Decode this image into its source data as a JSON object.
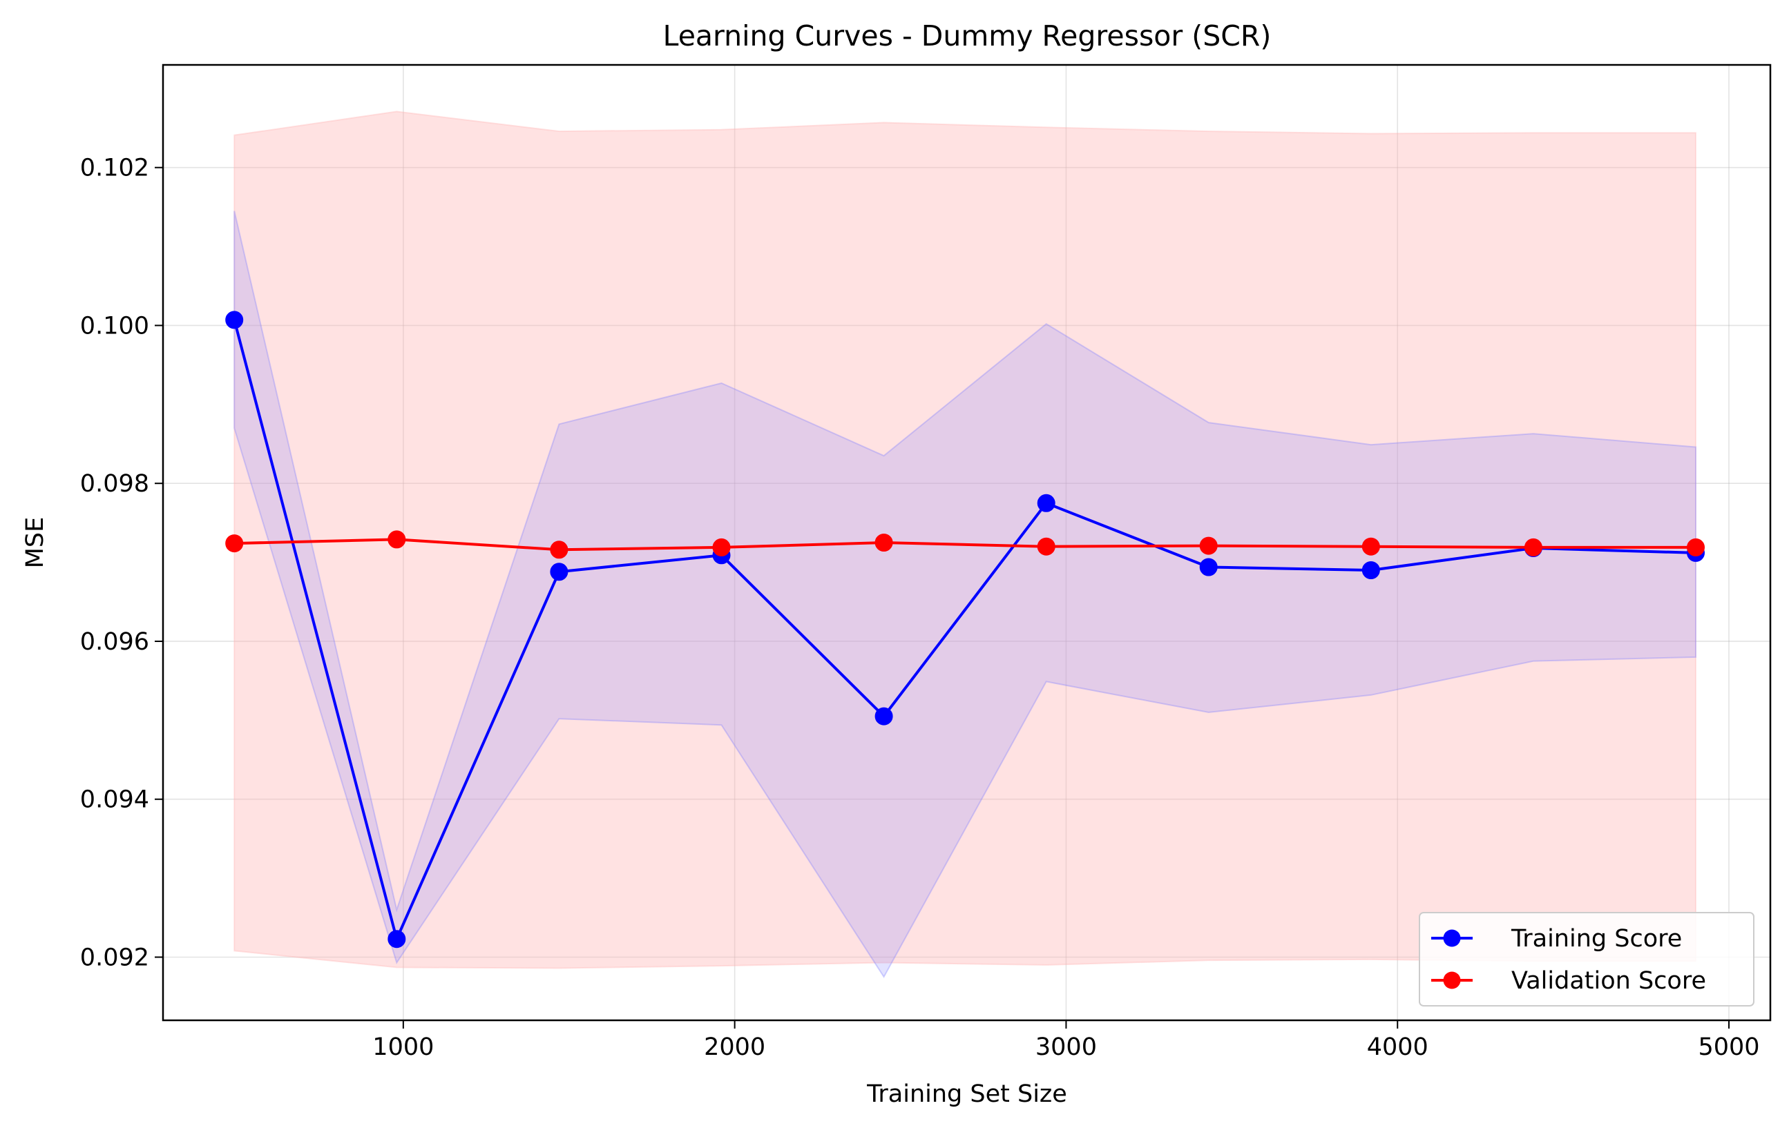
{
  "chart_data": {
    "type": "line",
    "title": "Learning Curves - Dummy Regressor (SCR)",
    "xlabel": "Training Set Size",
    "ylabel": "MSE",
    "xlim": [
      275,
      5125
    ],
    "ylim": [
      0.0912,
      0.1033
    ],
    "x_ticks": [
      1000,
      2000,
      3000,
      4000,
      5000
    ],
    "y_ticks": [
      0.092,
      0.094,
      0.096,
      0.098,
      0.1,
      0.102
    ],
    "x_tick_labels": [
      "1000",
      "2000",
      "3000",
      "4000",
      "5000"
    ],
    "y_tick_labels": [
      "0.092",
      "0.094",
      "0.096",
      "0.098",
      "0.100",
      "0.102"
    ],
    "grid": true,
    "legend_position": "lower right",
    "x": [
      490,
      980,
      1470,
      1960,
      2450,
      2940,
      3430,
      3920,
      4410,
      4900
    ],
    "series": [
      {
        "name": "Training Score",
        "color": "#0000ff",
        "band_color": "#8080ff",
        "values": [
          0.10007,
          0.09223,
          0.09688,
          0.09709,
          0.09505,
          0.09775,
          0.09694,
          0.0969,
          0.09718,
          0.09712
        ],
        "band_upper": [
          0.10145,
          0.0926,
          0.09875,
          0.09927,
          0.09835,
          0.10002,
          0.09877,
          0.09849,
          0.09863,
          0.09846
        ],
        "band_lower": [
          0.0987,
          0.09193,
          0.09502,
          0.09494,
          0.09175,
          0.09549,
          0.0951,
          0.09532,
          0.09575,
          0.0958
        ]
      },
      {
        "name": "Validation Score",
        "color": "#ff0000",
        "band_color": "#ffb3b3",
        "values": [
          0.09724,
          0.09729,
          0.09716,
          0.09719,
          0.09725,
          0.0972,
          0.09721,
          0.0972,
          0.09719,
          0.09719
        ],
        "band_upper": [
          0.10241,
          0.10271,
          0.10246,
          0.10248,
          0.10257,
          0.10251,
          0.10246,
          0.10243,
          0.10244,
          0.10244
        ],
        "band_lower": [
          0.09208,
          0.09187,
          0.09186,
          0.09189,
          0.09193,
          0.0919,
          0.09196,
          0.09197,
          0.09195,
          0.09195
        ]
      }
    ]
  }
}
